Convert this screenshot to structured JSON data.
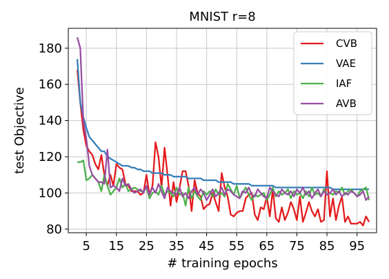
{
  "chart_data": {
    "type": "line",
    "title": "MNIST r=8",
    "xlabel": "# training epochs",
    "ylabel": "test Objective",
    "xlim": [
      -1,
      101.5
    ],
    "ylim": [
      78,
      191
    ],
    "xticks": [
      5,
      15,
      25,
      35,
      45,
      55,
      65,
      75,
      85,
      95
    ],
    "yticks": [
      80,
      100,
      120,
      140,
      160,
      180
    ],
    "grid": true,
    "legend_position": "top-right",
    "x": [
      2,
      3,
      4,
      5,
      6,
      7,
      8,
      9,
      10,
      11,
      12,
      13,
      14,
      15,
      16,
      17,
      18,
      19,
      20,
      21,
      22,
      23,
      24,
      25,
      26,
      27,
      28,
      29,
      30,
      31,
      32,
      33,
      34,
      35,
      36,
      37,
      38,
      39,
      40,
      41,
      42,
      43,
      44,
      45,
      46,
      47,
      48,
      49,
      50,
      51,
      52,
      53,
      54,
      55,
      56,
      57,
      58,
      59,
      60,
      61,
      62,
      63,
      64,
      65,
      66,
      67,
      68,
      69,
      70,
      71,
      72,
      73,
      74,
      75,
      76,
      77,
      78,
      79,
      80,
      81,
      82,
      83,
      84,
      85,
      86,
      87,
      88,
      89,
      90,
      91,
      92,
      93,
      94,
      95,
      96,
      97,
      98,
      99
    ],
    "series": [
      {
        "name": "CVB",
        "color": "#e41a1c",
        "values": [
          168,
          150,
          135,
          126,
          123,
          121,
          116,
          113,
          121,
          110,
          104,
          110,
          104,
          116,
          114,
          113,
          105,
          104,
          101,
          101,
          101,
          99,
          100,
          110,
          99,
          104,
          128,
          120,
          103,
          125,
          110,
          93,
          106,
          95,
          103,
          112,
          112,
          104,
          90,
          107,
          100,
          98,
          91,
          93,
          94,
          100,
          95,
          90,
          111,
          103,
          98,
          88,
          87,
          89,
          90,
          90,
          97,
          99,
          100,
          88,
          85,
          92,
          91,
          98,
          87,
          102,
          86,
          84,
          92,
          85,
          89,
          95,
          91,
          85,
          98,
          84,
          89,
          95,
          90,
          87,
          91,
          84,
          85,
          112,
          87,
          97,
          85,
          93,
          98,
          84,
          87,
          83,
          83,
          83,
          84,
          82,
          87,
          84
        ]
      },
      {
        "name": "VAE",
        "color": "#377eb8",
        "values": [
          174,
          150,
          142,
          136,
          131,
          129,
          127,
          125,
          123,
          123,
          120,
          119,
          118,
          117,
          116,
          115,
          115,
          115,
          114,
          114,
          113,
          113,
          112,
          112,
          112,
          111,
          111,
          111,
          111,
          110,
          110,
          110,
          109,
          109,
          109,
          109,
          109,
          108,
          108,
          108,
          108,
          108,
          107,
          107,
          107,
          107,
          107,
          106,
          106,
          106,
          106,
          106,
          105,
          105,
          105,
          105,
          105,
          105,
          104,
          104,
          104,
          104,
          104,
          104,
          104,
          104,
          103,
          103,
          103,
          103,
          103,
          103,
          103,
          103,
          103,
          103,
          103,
          103,
          103,
          103,
          103,
          103,
          103,
          103,
          103,
          102,
          102,
          102,
          102,
          102,
          102,
          102,
          102,
          102,
          102,
          102,
          102,
          102
        ]
      },
      {
        "name": "IAF",
        "color": "#4daf4a",
        "values": [
          117,
          117,
          118,
          107,
          108,
          110,
          108,
          106,
          101,
          110,
          104,
          99,
          101,
          103,
          108,
          103,
          105,
          101,
          102,
          103,
          102,
          101,
          101,
          103,
          97,
          100,
          101,
          99,
          104,
          99,
          101,
          100,
          98,
          103,
          99,
          100,
          93,
          103,
          97,
          101,
          98,
          96,
          101,
          99,
          101,
          98,
          102,
          99,
          100,
          98,
          105,
          102,
          99,
          104,
          97,
          100,
          103,
          99,
          96,
          99,
          98,
          99,
          100,
          96,
          99,
          103,
          98,
          101,
          99,
          100,
          102,
          97,
          101,
          99,
          100,
          97,
          101,
          98,
          103,
          99,
          100,
          98,
          102,
          99,
          100,
          99,
          101,
          100,
          103,
          99,
          101,
          102,
          100,
          98,
          101,
          102,
          103,
          96
        ]
      },
      {
        "name": "AVB",
        "color": "#984ea3",
        "values": [
          186,
          180,
          140,
          130,
          115,
          110,
          108,
          106,
          106,
          105,
          124,
          103,
          104,
          103,
          101,
          108,
          104,
          105,
          102,
          100,
          101,
          102,
          100,
          104,
          99,
          103,
          100,
          105,
          101,
          97,
          103,
          101,
          100,
          99,
          103,
          98,
          100,
          97,
          101,
          103,
          99,
          102,
          100,
          96,
          99,
          102,
          98,
          100,
          103,
          99,
          102,
          101,
          99,
          98,
          97,
          101,
          100,
          103,
          99,
          98,
          102,
          100,
          98,
          97,
          103,
          101,
          99,
          98,
          102,
          100,
          99,
          101,
          98,
          102,
          100,
          103,
          99,
          101,
          97,
          100,
          102,
          98,
          101,
          99,
          100,
          102,
          99,
          101,
          98,
          100,
          99,
          101,
          100,
          98,
          99,
          101,
          96,
          98
        ]
      }
    ]
  }
}
